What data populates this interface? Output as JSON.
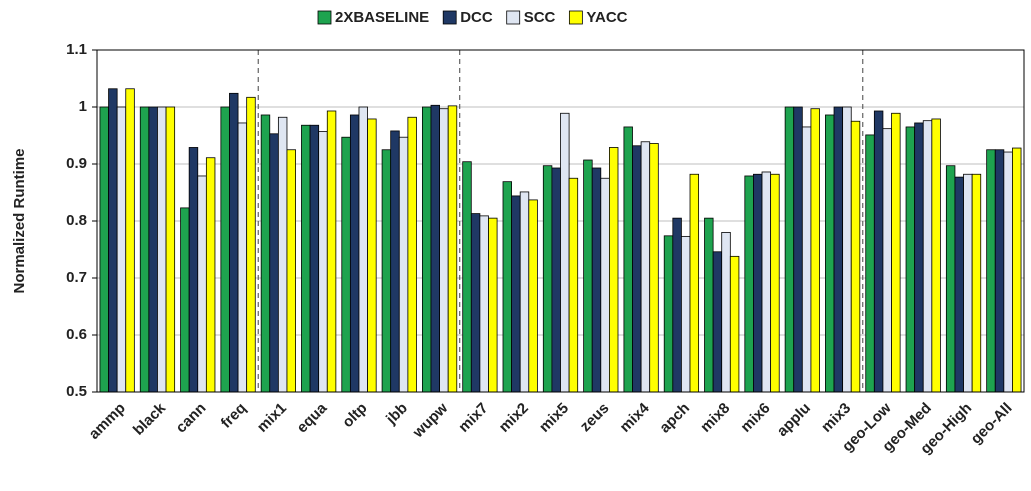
{
  "chart_data": {
    "type": "bar",
    "y_label": "Normalized Runtime",
    "categories": [
      "ammp",
      "black",
      "cann",
      "freq",
      "mix1",
      "equa",
      "oltp",
      "jbb",
      "wupw",
      "mix7",
      "mix2",
      "mix5",
      "zeus",
      "mix4",
      "apch",
      "mix8",
      "mix6",
      "applu",
      "mix3",
      "geo-Low",
      "geo-Med",
      "geo-High",
      "geo-All"
    ],
    "series": [
      {
        "name": "2XBASELINE",
        "color": "#1ea34f",
        "values": [
          1.0,
          1.0,
          0.823,
          1.0,
          0.986,
          0.968,
          0.947,
          0.925,
          1.0,
          0.904,
          0.869,
          0.897,
          0.907,
          0.965,
          0.774,
          0.805,
          0.879,
          1.0,
          0.986,
          0.951,
          0.965,
          0.897,
          0.925
        ]
      },
      {
        "name": "DCC",
        "color": "#1f3864",
        "values": [
          1.032,
          1.0,
          0.929,
          1.024,
          0.953,
          0.968,
          0.986,
          0.958,
          1.003,
          0.813,
          0.844,
          0.893,
          0.893,
          0.932,
          0.805,
          0.746,
          0.882,
          1.0,
          1.0,
          0.993,
          0.972,
          0.877,
          0.925
        ]
      },
      {
        "name": "SCC",
        "color": "#dfe6f2",
        "values": [
          1.0,
          1.0,
          0.879,
          0.972,
          0.982,
          0.957,
          1.0,
          0.947,
          0.997,
          0.809,
          0.851,
          0.989,
          0.875,
          0.939,
          0.773,
          0.78,
          0.886,
          0.965,
          1.0,
          0.962,
          0.976,
          0.882,
          0.921
        ]
      },
      {
        "name": "YACC",
        "color": "#ffff00",
        "values": [
          1.032,
          1.0,
          0.911,
          1.017,
          0.925,
          0.993,
          0.979,
          0.982,
          1.002,
          0.805,
          0.837,
          0.875,
          0.929,
          0.936,
          0.882,
          0.738,
          0.882,
          0.997,
          0.975,
          0.989,
          0.979,
          0.882,
          0.928
        ]
      }
    ],
    "ylim": [
      0.5,
      1.1
    ],
    "yticks": [
      0.5,
      0.6,
      0.7,
      0.8,
      0.9,
      1,
      1.1
    ],
    "grid": true,
    "legend": "top"
  }
}
